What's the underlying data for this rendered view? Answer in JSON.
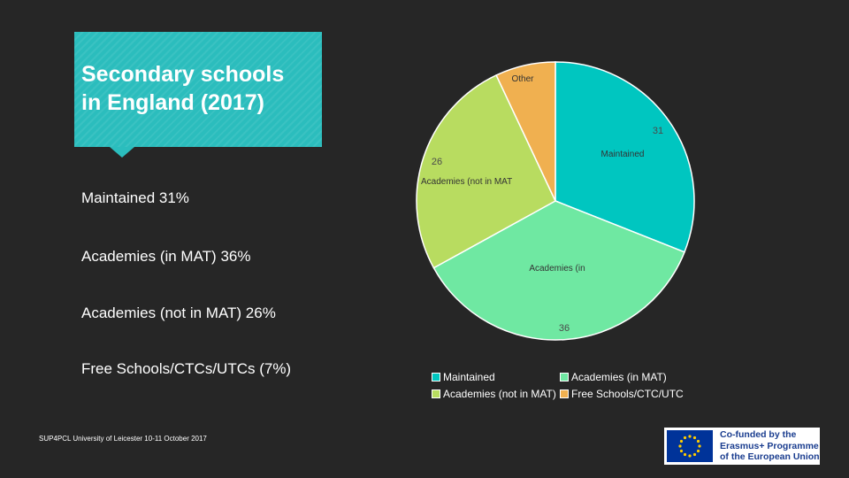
{
  "title": {
    "line1": "Secondary schools",
    "line2": "in England (2017)"
  },
  "bullets": [
    "Maintained 31%",
    "Academies (in MAT) 36%",
    "Academies (not in MAT) 26%",
    "Free Schools/CTCs/UTCs (7%)"
  ],
  "footer": "SUP4PCL University of Leicester 10-11 October 2017",
  "colors": {
    "background": "#262626",
    "title_card": "#2bbdbd",
    "maintained": "#00c6c0",
    "academies_in_mat": "#6fe8a2",
    "academies_not_in_mat": "#b8dc60",
    "free_schools": "#f0b050"
  },
  "chart_data": {
    "type": "pie",
    "title": "",
    "slices": [
      {
        "label": "Maintained",
        "value": 31,
        "color": "#00c6c0"
      },
      {
        "label": "Academies (in MAT)",
        "value": 36,
        "color": "#6fe8a2"
      },
      {
        "label": "Academies (not in MAT)",
        "value": 26,
        "color": "#b8dc60"
      },
      {
        "label": "Free Schools/CTC/UTC",
        "value": 7,
        "color": "#f0b050"
      }
    ],
    "slice_labels": [
      "Maintained",
      "Academies (in",
      "Academies (not in MAT",
      "Other"
    ],
    "value_labels": [
      "31",
      "36",
      "26",
      ""
    ],
    "legend": {
      "placement": "bottom",
      "entries": [
        "Maintained",
        "Academies (in MAT)",
        "Academies (not in MAT)",
        "Free Schools/CTC/UTC"
      ]
    }
  },
  "logo": {
    "line1": "Co-funded by the",
    "line2": "Erasmus+ Programme",
    "line3": "of the European Union"
  }
}
